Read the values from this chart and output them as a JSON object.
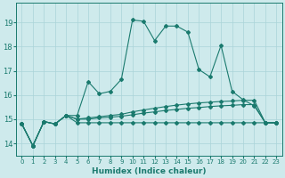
{
  "xlabel": "Humidex (Indice chaleur)",
  "xlim": [
    -0.5,
    23.5
  ],
  "ylim": [
    13.5,
    19.8
  ],
  "yticks": [
    14,
    15,
    16,
    17,
    18,
    19
  ],
  "xticks": [
    0,
    1,
    2,
    3,
    4,
    5,
    6,
    7,
    8,
    9,
    10,
    11,
    12,
    13,
    14,
    15,
    16,
    17,
    18,
    19,
    20,
    21,
    22,
    23
  ],
  "bg_color": "#ceeaec",
  "grid_color": "#aad4d8",
  "line_color": "#1a7a6e",
  "line1_y": [
    14.8,
    13.9,
    14.9,
    14.8,
    15.15,
    15.15,
    16.55,
    16.05,
    16.15,
    16.65,
    19.1,
    19.05,
    18.25,
    18.85,
    18.85,
    18.6,
    17.05,
    16.75,
    18.05,
    16.15,
    15.8,
    15.55,
    14.85,
    14.85
  ],
  "line2_y": [
    14.8,
    13.9,
    14.9,
    14.8,
    15.15,
    15.0,
    15.05,
    15.1,
    15.15,
    15.2,
    15.3,
    15.38,
    15.45,
    15.52,
    15.58,
    15.63,
    15.67,
    15.7,
    15.73,
    15.75,
    15.78,
    15.78,
    14.85,
    14.85
  ],
  "line3_y": [
    14.8,
    13.9,
    14.9,
    14.8,
    15.15,
    15.0,
    15.0,
    15.05,
    15.08,
    15.12,
    15.18,
    15.25,
    15.3,
    15.36,
    15.4,
    15.45,
    15.48,
    15.52,
    15.55,
    15.57,
    15.6,
    15.6,
    14.85,
    14.85
  ],
  "line4_y": [
    14.8,
    13.9,
    14.9,
    14.8,
    15.15,
    14.85,
    14.85,
    14.85,
    14.85,
    14.85,
    14.85,
    14.85,
    14.85,
    14.85,
    14.85,
    14.85,
    14.85,
    14.85,
    14.85,
    14.85,
    14.85,
    14.85,
    14.85,
    14.85
  ]
}
